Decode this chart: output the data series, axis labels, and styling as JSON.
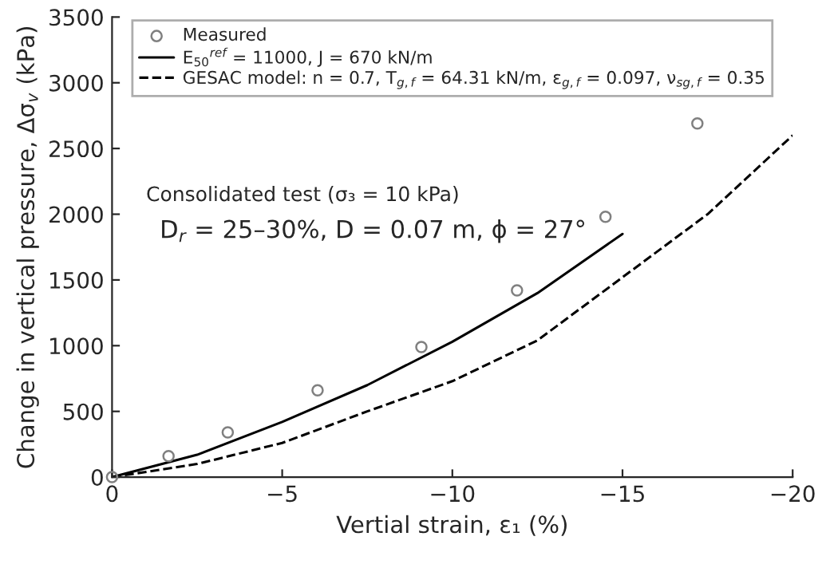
{
  "chart_data": {
    "type": "line",
    "xlabel": "Vertial strain, ε₁ (%)",
    "ylabel": "Change in vertical pressure, Δσ$_{v}$ (kPa)",
    "xlim": [
      0,
      -20
    ],
    "xticks": [
      0,
      {
        "value": -5,
        "label": "−5"
      },
      {
        "value": -10,
        "label": "−10"
      },
      {
        "value": -15,
        "label": "−15"
      },
      {
        "value": -20,
        "label": "−20"
      }
    ],
    "ylim": [
      0,
      3500
    ],
    "yticks": [
      0,
      500,
      1000,
      1500,
      2000,
      2500,
      3000,
      3500
    ],
    "grid": false,
    "legend": "top",
    "series": [
      {
        "name": "Measured",
        "type": "scatter",
        "marker": "circle",
        "color": "#808080",
        "x": [
          0,
          -1.66,
          -3.4,
          -6.04,
          -9.09,
          -11.9,
          -14.5,
          -17.2
        ],
        "values": [
          0,
          160,
          340,
          660,
          990,
          1420,
          1980,
          2690
        ]
      },
      {
        "name": "E$_{50}$$^{ref}$ = 11000, J = 670 kN/m",
        "line_style": "solid",
        "color": "#000000",
        "x": [
          0,
          -2.5,
          -5,
          -7.5,
          -10,
          -12.5,
          -15
        ],
        "values": [
          0,
          170,
          420,
          700,
          1030,
          1400,
          1850
        ]
      },
      {
        "name": "GESAC model: n = 0.7, T$_{g,f}$ = 64.31 kN/m, ε$_{g,f}$ = 0.097, ν$_{sg,f}$ = 0.35",
        "line_style": "dashed",
        "color": "#000000",
        "x": [
          0,
          -2.5,
          -5,
          -7.5,
          -10,
          -12.5,
          -15,
          -17.5,
          -20
        ],
        "values": [
          0,
          100,
          260,
          500,
          730,
          1040,
          1520,
          2000,
          2600
        ]
      }
    ],
    "annotations": [
      "Consolidated test (σ₃ = 10 kPa)",
      "D$_{r}$ = 25–30%, D = 0.07 m, ϕ = 27°"
    ]
  }
}
